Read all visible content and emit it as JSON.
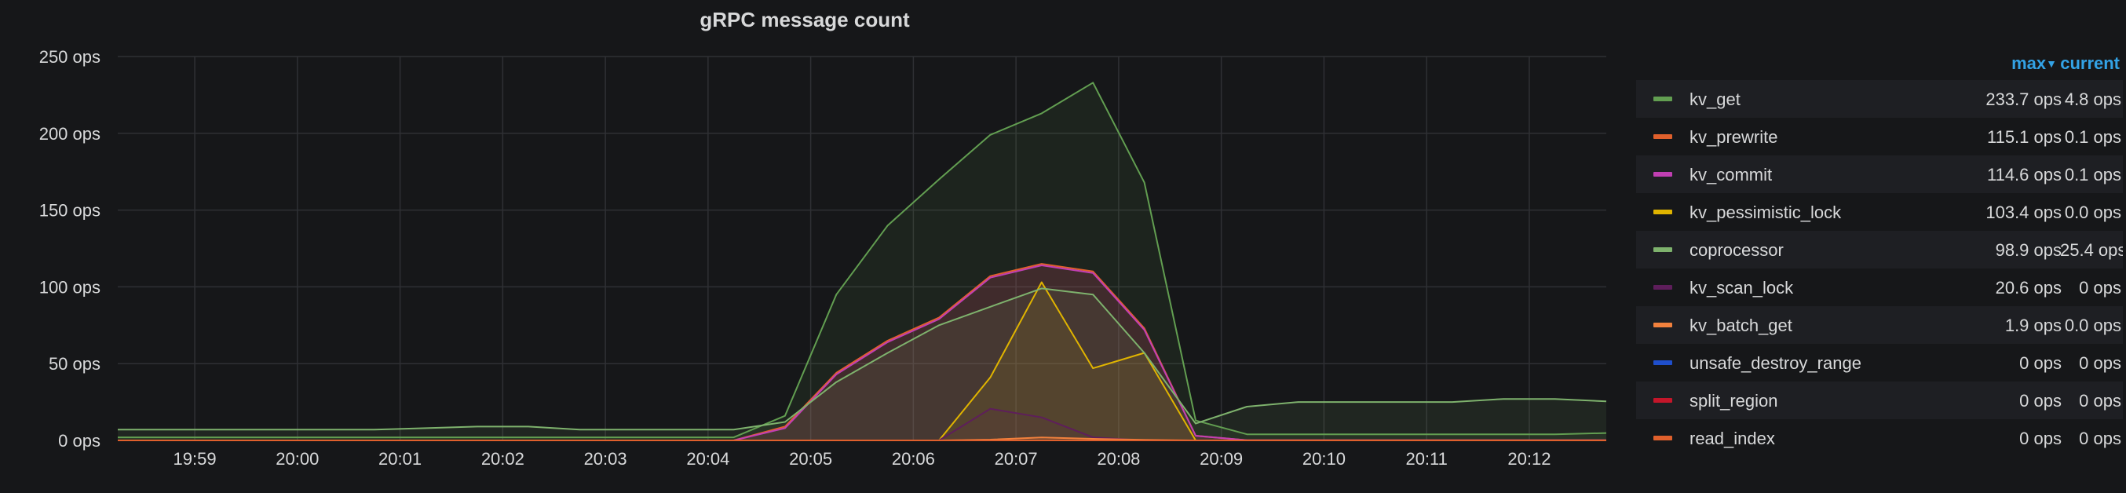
{
  "panel": {
    "title": "gRPC message count"
  },
  "legend": {
    "max_header": "max",
    "max_sort_icon": "caret-down-icon",
    "current_header": "current"
  },
  "chart_data": {
    "type": "area",
    "title": "gRPC message count",
    "ylim": [
      0,
      250
    ],
    "y_ticks": [
      "0 ops",
      "50 ops",
      "100 ops",
      "150 ops",
      "200 ops",
      "250 ops"
    ],
    "x_ticks": [
      "19:59",
      "20:00",
      "20:01",
      "20:02",
      "20:03",
      "20:04",
      "20:05",
      "20:06",
      "20:07",
      "20:08",
      "20:09",
      "20:10",
      "20:11",
      "20:12"
    ],
    "x_range": [
      "19:58:15",
      "20:12:45"
    ],
    "grid": true,
    "legend_position": "right",
    "x": [
      "19:58:15",
      "19:58:45",
      "19:59:15",
      "19:59:45",
      "20:00:15",
      "20:00:45",
      "20:01:15",
      "20:01:45",
      "20:02:15",
      "20:02:45",
      "20:03:15",
      "20:03:45",
      "20:04:15",
      "20:04:45",
      "20:05:15",
      "20:05:45",
      "20:06:15",
      "20:06:45",
      "20:07:15",
      "20:07:45",
      "20:08:15",
      "20:08:45",
      "20:09:15",
      "20:09:45",
      "20:10:15",
      "20:10:45",
      "20:11:15",
      "20:11:45",
      "20:12:15",
      "20:12:45"
    ],
    "series": [
      {
        "name": "kv_get",
        "color": "#629e51",
        "max": "233.7 ops",
        "current": "4.8 ops",
        "values": [
          2,
          2,
          2,
          2,
          2,
          2,
          2,
          2,
          2,
          2,
          2,
          2,
          2,
          16,
          95,
          140,
          170,
          199,
          213,
          233,
          168,
          13,
          4,
          4,
          4,
          4,
          4,
          4,
          4,
          4.8
        ]
      },
      {
        "name": "kv_prewrite",
        "color": "#e0602c",
        "max": "115.1 ops",
        "current": "0.1 ops",
        "values": [
          0,
          0,
          0,
          0,
          0,
          0,
          0,
          0,
          0,
          0,
          0,
          0,
          0,
          9,
          44,
          65,
          80,
          107,
          115,
          110,
          73,
          3,
          0.1,
          0.1,
          0.1,
          0.1,
          0.1,
          0.1,
          0.1,
          0.1
        ]
      },
      {
        "name": "kv_commit",
        "color": "#c13fb3",
        "max": "114.6 ops",
        "current": "0.1 ops",
        "values": [
          0,
          0,
          0,
          0,
          0,
          0,
          0,
          0,
          0,
          0,
          0,
          0,
          0,
          8,
          43,
          64,
          79,
          106,
          114,
          109,
          72,
          3,
          0.1,
          0.1,
          0.1,
          0.1,
          0.1,
          0.1,
          0.1,
          0.1
        ]
      },
      {
        "name": "kv_pessimistic_lock",
        "color": "#e0b400",
        "max": "103.4 ops",
        "current": "0.0 ops",
        "values": [
          0,
          0,
          0,
          0,
          0,
          0,
          0,
          0,
          0,
          0,
          0,
          0,
          0,
          0,
          0,
          0,
          0,
          41,
          103,
          47,
          57,
          0,
          0,
          0,
          0,
          0,
          0,
          0,
          0,
          0
        ]
      },
      {
        "name": "coprocessor",
        "color": "#7eb26d",
        "max": "98.9 ops",
        "current": "25.4 ops",
        "values": [
          7,
          7,
          7,
          7,
          7,
          7,
          8,
          9,
          9,
          7,
          7,
          7,
          7,
          12,
          38,
          57,
          75,
          87,
          99,
          95,
          57,
          11,
          22,
          25,
          25,
          25,
          25,
          27,
          27,
          25.4
        ]
      },
      {
        "name": "kv_scan_lock",
        "color": "#5e1e5b",
        "max": "20.6 ops",
        "current": "0 ops",
        "values": [
          0,
          0,
          0,
          0,
          0,
          0,
          0,
          0,
          0,
          0,
          0,
          0,
          0,
          0,
          0,
          0,
          0,
          20.6,
          15,
          2,
          0,
          0,
          0,
          0,
          0,
          0,
          0,
          0,
          0,
          0
        ]
      },
      {
        "name": "kv_batch_get",
        "color": "#f2813d",
        "max": "1.9 ops",
        "current": "0.0 ops",
        "values": [
          0,
          0,
          0,
          0,
          0,
          0,
          0,
          0,
          0,
          0,
          0,
          0,
          0,
          0,
          0,
          0,
          0,
          0.5,
          1.9,
          1,
          0.4,
          0,
          0,
          0,
          0,
          0,
          0,
          0,
          0,
          0
        ]
      },
      {
        "name": "unsafe_destroy_range",
        "color": "#1f4fcc",
        "max": "0 ops",
        "current": "0 ops",
        "values": [
          0,
          0,
          0,
          0,
          0,
          0,
          0,
          0,
          0,
          0,
          0,
          0,
          0,
          0,
          0,
          0,
          0,
          0,
          0,
          0,
          0,
          0,
          0,
          0,
          0,
          0,
          0,
          0,
          0,
          0
        ]
      },
      {
        "name": "split_region",
        "color": "#c4162a",
        "max": "0 ops",
        "current": "0 ops",
        "values": [
          0,
          0,
          0,
          0,
          0,
          0,
          0,
          0,
          0,
          0,
          0,
          0,
          0,
          0,
          0,
          0,
          0,
          0,
          0,
          0,
          0,
          0,
          0,
          0,
          0,
          0,
          0,
          0,
          0,
          0
        ]
      },
      {
        "name": "read_index",
        "color": "#e0602c",
        "max": "0 ops",
        "current": "0 ops",
        "values": [
          0,
          0,
          0,
          0,
          0,
          0,
          0,
          0,
          0,
          0,
          0,
          0,
          0,
          0,
          0,
          0,
          0,
          0,
          0,
          0,
          0,
          0,
          0,
          0,
          0,
          0,
          0,
          0,
          0,
          0
        ]
      }
    ]
  }
}
